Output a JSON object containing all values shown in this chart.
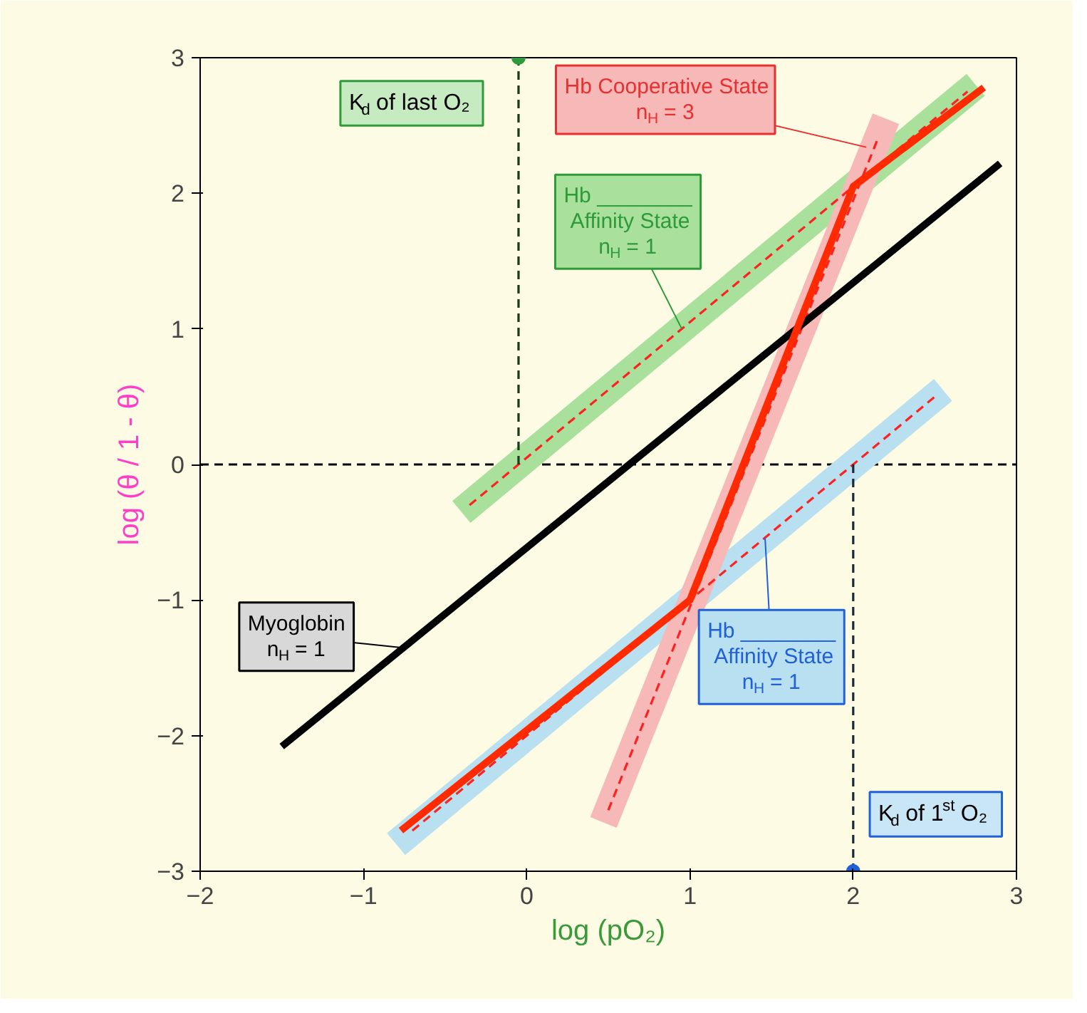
{
  "chart_data": {
    "type": "line",
    "xlabel": "log (pO₂)",
    "ylabel": "log (θ / 1 - θ)",
    "xlim": [
      -2,
      3
    ],
    "ylim": [
      -3,
      3
    ],
    "xticks": [
      -2,
      -1,
      0,
      1,
      2,
      3
    ],
    "yticks": [
      -3,
      -2,
      -1,
      0,
      1,
      2,
      3
    ],
    "grid": false,
    "legend": false,
    "series": [
      {
        "name": "Hb ________\nAffinity State\nn$_{H}$ = 1",
        "color": "#a8e09c",
        "x": [
          -0.4,
          2.75
        ],
        "values": [
          -0.35,
          2.8
        ]
      },
      {
        "name": "Hb ________\nAffinity State\nn$_{H}$ = 1",
        "color": "#b8e0f0",
        "x": [
          -0.8,
          2.55
        ],
        "values": [
          -2.8,
          0.55
        ]
      },
      {
        "name": "Hb Cooperative State\nn$_{H}$ = 3",
        "color": "#f7b8b8",
        "x": [
          0.47,
          2.2
        ],
        "values": [
          -2.64,
          2.55
        ]
      },
      {
        "color": "#ff2020",
        "line_style": "dashed",
        "x": [
          -0.35,
          2.7
        ],
        "values": [
          -0.3,
          2.75
        ]
      },
      {
        "color": "#ff2020",
        "line_style": "dashed",
        "x": [
          -0.7,
          2.5
        ],
        "values": [
          -2.7,
          0.5
        ]
      },
      {
        "color": "#ff2020",
        "line_style": "dashed",
        "x": [
          0.5,
          2.15
        ],
        "values": [
          -2.55,
          2.4
        ]
      },
      {
        "color": "#1a3a1a",
        "line_style": "dashed",
        "x": [
          -0.05,
          -0.05
        ],
        "values": [
          0,
          3
        ]
      },
      {
        "color": "#1a2a3a",
        "line_style": "dashed",
        "x": [
          2,
          2
        ],
        "values": [
          0,
          -3
        ]
      },
      {
        "name": "Myoglobin\nn$_{H}$ = 1",
        "color": "#000000",
        "x": [
          -1.5,
          2.9
        ],
        "values": [
          -2.08,
          2.22
        ]
      },
      {
        "color": "#ff2a00",
        "x": [
          -0.77,
          1.0,
          2.0,
          2.8
        ],
        "values": [
          -2.7,
          -1.0,
          2.05,
          2.78
        ]
      }
    ],
    "ref_lines": [
      {
        "axis": "y",
        "value": 0,
        "color": "#000000",
        "line_style": "dashed"
      }
    ],
    "annotations": [
      {
        "text": "K$_{d}$ of last O₂",
        "x": -0.05,
        "y": 3
      },
      {
        "text": "K$_{d}$ of 1$^{st}$ O₂",
        "x": 2,
        "y": -3
      }
    ]
  }
}
